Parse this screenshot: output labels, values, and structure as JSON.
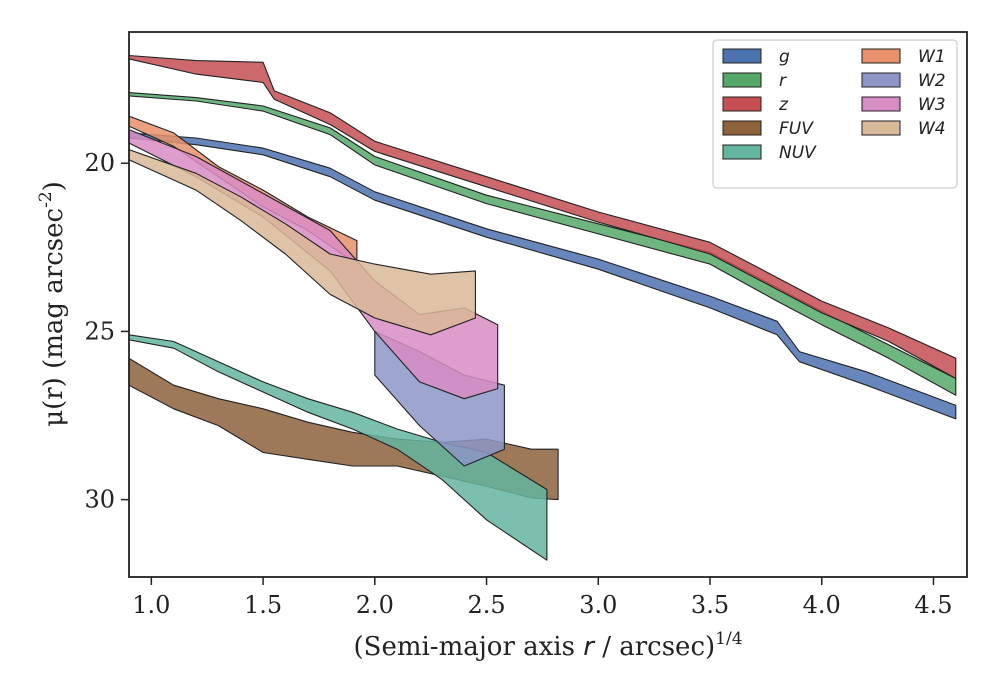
{
  "chart_data": {
    "type": "area",
    "xlabel": "(Semi-major axis r / arcsec)^{1/4}",
    "ylabel": "μ(r) (mag arcsec^{-2})",
    "xlim": [
      0.9,
      4.65
    ],
    "ylim": [
      32.3,
      16.1
    ],
    "y_inverted": true,
    "x_ticks": [
      "1.0",
      "1.5",
      "2.0",
      "2.5",
      "3.0",
      "3.5",
      "4.0",
      "4.5"
    ],
    "y_ticks": [
      "20",
      "25",
      "30"
    ],
    "grid": false,
    "legend_position": "top-right",
    "series": [
      {
        "name": "g",
        "color": "#4c72b0",
        "upper": [
          [
            0.9,
            19.1
          ],
          [
            1.2,
            19.25
          ],
          [
            1.5,
            19.55
          ],
          [
            1.8,
            20.15
          ],
          [
            2.0,
            20.85
          ],
          [
            2.5,
            21.95
          ],
          [
            3.0,
            22.85
          ],
          [
            3.5,
            23.95
          ],
          [
            3.8,
            24.7
          ],
          [
            3.9,
            25.6
          ],
          [
            4.2,
            26.2
          ],
          [
            4.6,
            27.2
          ]
        ],
        "lower": [
          [
            0.9,
            19.25
          ],
          [
            1.2,
            19.45
          ],
          [
            1.5,
            19.75
          ],
          [
            1.8,
            20.4
          ],
          [
            2.0,
            21.1
          ],
          [
            2.5,
            22.2
          ],
          [
            3.0,
            23.15
          ],
          [
            3.5,
            24.3
          ],
          [
            3.8,
            25.1
          ],
          [
            3.9,
            25.9
          ],
          [
            4.2,
            26.6
          ],
          [
            4.6,
            27.6
          ]
        ]
      },
      {
        "name": "r",
        "color": "#55a868",
        "upper": [
          [
            0.9,
            17.9
          ],
          [
            1.2,
            18.05
          ],
          [
            1.5,
            18.3
          ],
          [
            1.8,
            18.95
          ],
          [
            2.0,
            19.8
          ],
          [
            2.5,
            20.95
          ],
          [
            3.0,
            21.8
          ],
          [
            3.5,
            22.65
          ],
          [
            3.8,
            23.7
          ],
          [
            4.0,
            24.4
          ],
          [
            4.3,
            25.4
          ],
          [
            4.6,
            26.4
          ]
        ],
        "lower": [
          [
            0.9,
            18.0
          ],
          [
            1.2,
            18.15
          ],
          [
            1.5,
            18.45
          ],
          [
            1.8,
            19.15
          ],
          [
            2.0,
            20.05
          ],
          [
            2.5,
            21.2
          ],
          [
            3.0,
            22.1
          ],
          [
            3.5,
            23.0
          ],
          [
            3.8,
            24.1
          ],
          [
            4.0,
            24.8
          ],
          [
            4.3,
            25.8
          ],
          [
            4.6,
            26.9
          ]
        ]
      },
      {
        "name": "z",
        "color": "#c44e52",
        "upper": [
          [
            0.9,
            16.8
          ],
          [
            1.2,
            16.95
          ],
          [
            1.5,
            17.0
          ],
          [
            1.55,
            17.85
          ],
          [
            1.8,
            18.5
          ],
          [
            2.0,
            19.35
          ],
          [
            2.5,
            20.4
          ],
          [
            3.0,
            21.45
          ],
          [
            3.5,
            22.35
          ],
          [
            3.8,
            23.4
          ],
          [
            4.0,
            24.1
          ],
          [
            4.3,
            24.9
          ],
          [
            4.6,
            25.8
          ]
        ],
        "lower": [
          [
            0.9,
            16.9
          ],
          [
            1.2,
            17.35
          ],
          [
            1.5,
            17.6
          ],
          [
            1.55,
            18.1
          ],
          [
            1.8,
            18.85
          ],
          [
            2.0,
            19.65
          ],
          [
            2.5,
            20.7
          ],
          [
            3.0,
            21.75
          ],
          [
            3.5,
            22.7
          ],
          [
            3.8,
            23.75
          ],
          [
            4.0,
            24.45
          ],
          [
            4.3,
            25.3
          ],
          [
            4.6,
            26.4
          ]
        ]
      },
      {
        "name": "FUV",
        "color": "#8c613c",
        "upper": [
          [
            0.9,
            25.8
          ],
          [
            1.1,
            26.6
          ],
          [
            1.3,
            27.0
          ],
          [
            1.5,
            27.3
          ],
          [
            1.7,
            27.7
          ],
          [
            1.9,
            28.0
          ],
          [
            2.1,
            28.2
          ],
          [
            2.3,
            28.3
          ],
          [
            2.5,
            28.2
          ],
          [
            2.7,
            28.5
          ],
          [
            2.82,
            28.5
          ]
        ],
        "lower": [
          [
            0.9,
            26.6
          ],
          [
            1.1,
            27.3
          ],
          [
            1.3,
            27.8
          ],
          [
            1.5,
            28.6
          ],
          [
            1.7,
            28.8
          ],
          [
            1.9,
            29.0
          ],
          [
            2.1,
            29.0
          ],
          [
            2.3,
            29.3
          ],
          [
            2.5,
            29.6
          ],
          [
            2.7,
            29.95
          ],
          [
            2.82,
            30.0
          ]
        ]
      },
      {
        "name": "NUV",
        "color": "#64b5a0",
        "upper": [
          [
            0.9,
            25.1
          ],
          [
            1.1,
            25.3
          ],
          [
            1.3,
            25.9
          ],
          [
            1.5,
            26.5
          ],
          [
            1.7,
            27.0
          ],
          [
            1.9,
            27.4
          ],
          [
            2.1,
            27.9
          ],
          [
            2.3,
            28.3
          ],
          [
            2.5,
            28.6
          ],
          [
            2.77,
            29.7
          ]
        ],
        "lower": [
          [
            0.9,
            25.25
          ],
          [
            1.1,
            25.5
          ],
          [
            1.3,
            26.2
          ],
          [
            1.5,
            26.8
          ],
          [
            1.7,
            27.4
          ],
          [
            1.9,
            27.9
          ],
          [
            2.1,
            28.5
          ],
          [
            2.3,
            29.4
          ],
          [
            2.5,
            30.6
          ],
          [
            2.77,
            31.8
          ]
        ]
      },
      {
        "name": "W1",
        "color": "#e8906b",
        "upper": [
          [
            0.9,
            18.6
          ],
          [
            1.1,
            19.1
          ],
          [
            1.3,
            20.1
          ],
          [
            1.5,
            20.8
          ],
          [
            1.7,
            21.6
          ],
          [
            1.92,
            22.3
          ]
        ],
        "lower": [
          [
            0.9,
            18.9
          ],
          [
            1.1,
            19.5
          ],
          [
            1.3,
            20.4
          ],
          [
            1.5,
            21.3
          ],
          [
            1.7,
            22.0
          ],
          [
            1.92,
            23.0
          ]
        ]
      },
      {
        "name": "W2",
        "color": "#8c96c6",
        "upper": [
          [
            2.0,
            25.0
          ],
          [
            2.2,
            25.6
          ],
          [
            2.4,
            26.3
          ],
          [
            2.58,
            26.6
          ]
        ],
        "lower": [
          [
            2.0,
            26.3
          ],
          [
            2.2,
            27.8
          ],
          [
            2.4,
            29.0
          ],
          [
            2.58,
            28.5
          ]
        ]
      },
      {
        "name": "W3",
        "color": "#d88cc4",
        "upper": [
          [
            0.9,
            19.0
          ],
          [
            1.2,
            19.8
          ],
          [
            1.5,
            20.9
          ],
          [
            1.8,
            22.0
          ],
          [
            2.0,
            23.5
          ],
          [
            2.2,
            24.5
          ],
          [
            2.4,
            24.3
          ],
          [
            2.55,
            24.8
          ]
        ],
        "lower": [
          [
            0.9,
            19.4
          ],
          [
            1.2,
            20.4
          ],
          [
            1.5,
            21.6
          ],
          [
            1.8,
            23.2
          ],
          [
            2.0,
            25.0
          ],
          [
            2.2,
            26.5
          ],
          [
            2.4,
            27.0
          ],
          [
            2.55,
            26.7
          ]
        ]
      },
      {
        "name": "W4",
        "color": "#d9b997",
        "upper": [
          [
            0.9,
            19.6
          ],
          [
            1.2,
            20.3
          ],
          [
            1.4,
            21.0
          ],
          [
            1.6,
            21.8
          ],
          [
            1.8,
            22.7
          ],
          [
            2.0,
            23.0
          ],
          [
            2.25,
            23.3
          ],
          [
            2.45,
            23.2
          ]
        ],
        "lower": [
          [
            0.9,
            19.9
          ],
          [
            1.2,
            20.8
          ],
          [
            1.4,
            21.7
          ],
          [
            1.6,
            22.7
          ],
          [
            1.8,
            23.9
          ],
          [
            2.0,
            24.6
          ],
          [
            2.25,
            25.1
          ],
          [
            2.45,
            24.6
          ]
        ]
      }
    ]
  }
}
